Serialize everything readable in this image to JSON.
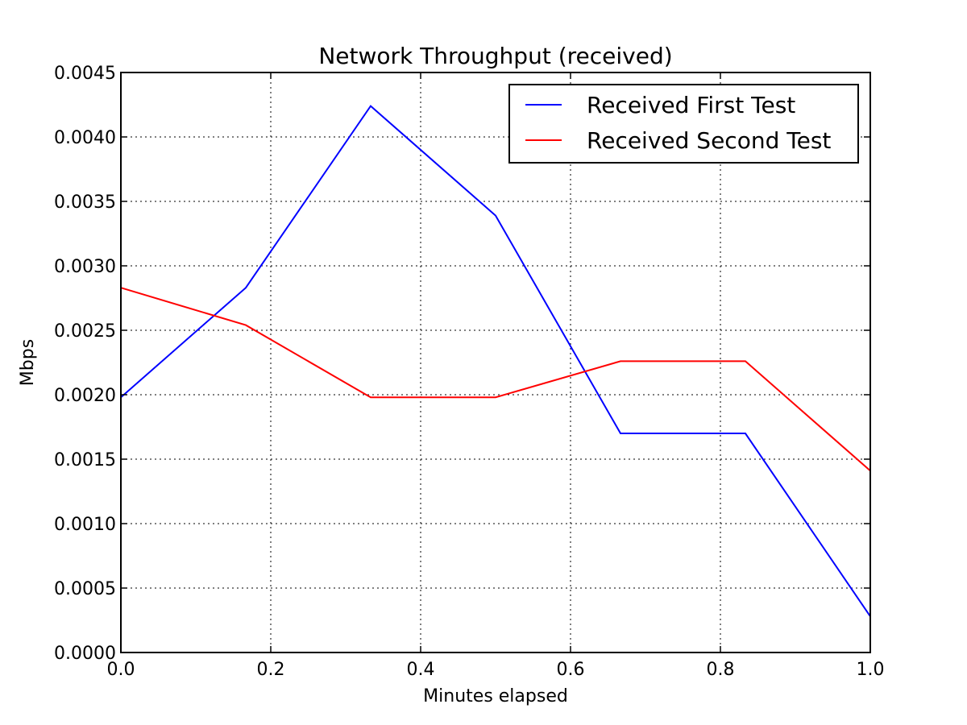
{
  "chart_data": {
    "type": "line",
    "title": "Network Throughput (received)",
    "xlabel": "Minutes elapsed",
    "ylabel": "Mbps",
    "xlim": [
      0.0,
      1.0
    ],
    "ylim": [
      0.0,
      0.0045
    ],
    "x_ticks": [
      "0.0",
      "0.2",
      "0.4",
      "0.6",
      "0.8",
      "1.0"
    ],
    "y_ticks": [
      "0.0000",
      "0.0005",
      "0.0010",
      "0.0015",
      "0.0020",
      "0.0025",
      "0.0030",
      "0.0035",
      "0.0040",
      "0.0045"
    ],
    "grid": true,
    "legend_position": "top-right",
    "x": [
      0.0,
      0.1667,
      0.3333,
      0.5,
      0.6667,
      0.8333,
      1.0
    ],
    "series": [
      {
        "name": "Received First Test",
        "color": "#0000ff",
        "values": [
          0.00198,
          0.00283,
          0.00424,
          0.00339,
          0.0017,
          0.0017,
          0.00028
        ]
      },
      {
        "name": "Received Second Test",
        "color": "#ff0000",
        "values": [
          0.00283,
          0.00254,
          0.00198,
          0.00198,
          0.00226,
          0.00226,
          0.00141
        ]
      }
    ]
  }
}
